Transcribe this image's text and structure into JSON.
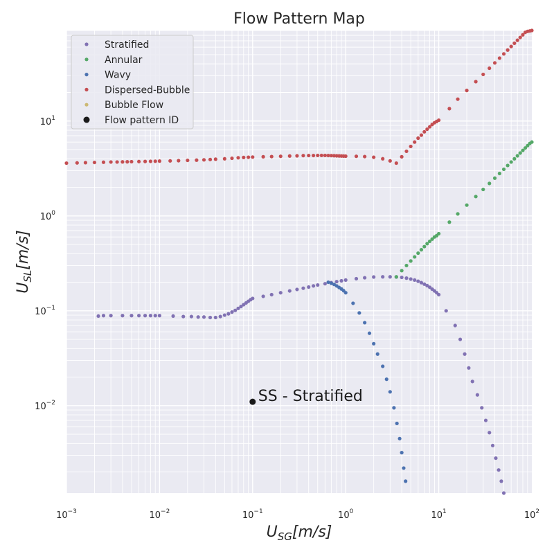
{
  "chart_data": {
    "type": "scatter",
    "title": "Flow Pattern Map",
    "xlabel_main": "U",
    "xlabel_sub": "SG",
    "xlabel_unit": "[m/s]",
    "ylabel_main": "U",
    "ylabel_sub": "SL",
    "ylabel_unit": "[m/s]",
    "x_scale": "log",
    "y_scale": "log",
    "xlim": [
      0.001,
      100
    ],
    "ylim": [
      0.0012,
      90
    ],
    "grid": true,
    "legend_position": "top-left",
    "x_ticks": [
      {
        "value": 0.001,
        "base": "10",
        "exp": "−3"
      },
      {
        "value": 0.01,
        "base": "10",
        "exp": "−2"
      },
      {
        "value": 0.1,
        "base": "10",
        "exp": "−1"
      },
      {
        "value": 1,
        "base": "10",
        "exp": "0"
      },
      {
        "value": 10,
        "base": "10",
        "exp": "1"
      },
      {
        "value": 100,
        "base": "10",
        "exp": "2"
      }
    ],
    "y_ticks": [
      {
        "value": 0.01,
        "base": "10",
        "exp": "−2"
      },
      {
        "value": 0.1,
        "base": "10",
        "exp": "−1"
      },
      {
        "value": 1,
        "base": "10",
        "exp": "0"
      },
      {
        "value": 10,
        "base": "10",
        "exp": "1"
      }
    ],
    "series": [
      {
        "name": "Stratified",
        "color": "#8172b3",
        "points": [
          [
            0.0022,
            0.088
          ],
          [
            0.0025,
            0.089
          ],
          [
            0.003,
            0.089
          ],
          [
            0.004,
            0.089
          ],
          [
            0.005,
            0.089
          ],
          [
            0.006,
            0.089
          ],
          [
            0.007,
            0.089
          ],
          [
            0.008,
            0.089
          ],
          [
            0.009,
            0.089
          ],
          [
            0.01,
            0.089
          ],
          [
            0.014,
            0.088
          ],
          [
            0.018,
            0.087
          ],
          [
            0.022,
            0.087
          ],
          [
            0.026,
            0.086
          ],
          [
            0.03,
            0.086
          ],
          [
            0.035,
            0.085
          ],
          [
            0.04,
            0.085
          ],
          [
            0.045,
            0.087
          ],
          [
            0.05,
            0.09
          ],
          [
            0.055,
            0.093
          ],
          [
            0.06,
            0.097
          ],
          [
            0.065,
            0.101
          ],
          [
            0.07,
            0.106
          ],
          [
            0.075,
            0.111
          ],
          [
            0.08,
            0.116
          ],
          [
            0.085,
            0.121
          ],
          [
            0.09,
            0.126
          ],
          [
            0.095,
            0.131
          ],
          [
            0.1,
            0.135
          ],
          [
            0.13,
            0.142
          ],
          [
            0.16,
            0.148
          ],
          [
            0.2,
            0.155
          ],
          [
            0.25,
            0.162
          ],
          [
            0.3,
            0.168
          ],
          [
            0.35,
            0.173
          ],
          [
            0.4,
            0.178
          ],
          [
            0.45,
            0.183
          ],
          [
            0.5,
            0.187
          ],
          [
            0.6,
            0.193
          ],
          [
            0.7,
            0.198
          ],
          [
            0.8,
            0.203
          ],
          [
            0.9,
            0.207
          ],
          [
            1.0,
            0.211
          ],
          [
            1.3,
            0.218
          ],
          [
            1.6,
            0.223
          ],
          [
            2.0,
            0.227
          ],
          [
            2.5,
            0.228
          ],
          [
            3.0,
            0.228
          ],
          [
            3.5,
            0.227
          ],
          [
            4.0,
            0.225
          ],
          [
            4.5,
            0.221
          ],
          [
            5.0,
            0.216
          ],
          [
            5.5,
            0.211
          ],
          [
            6.0,
            0.205
          ],
          [
            6.5,
            0.198
          ],
          [
            7.0,
            0.191
          ],
          [
            7.5,
            0.184
          ],
          [
            8.0,
            0.177
          ],
          [
            8.5,
            0.169
          ],
          [
            9.0,
            0.162
          ],
          [
            9.5,
            0.155
          ],
          [
            10.0,
            0.148
          ],
          [
            12,
            0.1
          ],
          [
            15,
            0.07
          ],
          [
            17,
            0.05
          ],
          [
            19,
            0.035
          ],
          [
            21,
            0.025
          ],
          [
            23,
            0.018
          ],
          [
            26,
            0.013
          ],
          [
            29,
            0.0095
          ],
          [
            32,
            0.007
          ],
          [
            35,
            0.0052
          ],
          [
            38,
            0.0038
          ],
          [
            41,
            0.0028
          ],
          [
            44,
            0.0021
          ],
          [
            47,
            0.0016
          ],
          [
            50,
            0.0012
          ]
        ]
      },
      {
        "name": "Annular",
        "color": "#55a868",
        "points": [
          [
            3.5,
            0.228
          ],
          [
            4,
            0.265
          ],
          [
            4.5,
            0.3
          ],
          [
            5,
            0.335
          ],
          [
            5.5,
            0.37
          ],
          [
            6,
            0.405
          ],
          [
            6.5,
            0.44
          ],
          [
            7,
            0.475
          ],
          [
            7.5,
            0.51
          ],
          [
            8,
            0.54
          ],
          [
            8.5,
            0.57
          ],
          [
            9,
            0.6
          ],
          [
            9.5,
            0.62
          ],
          [
            10,
            0.65
          ],
          [
            13,
            0.86
          ],
          [
            16,
            1.05
          ],
          [
            20,
            1.3
          ],
          [
            25,
            1.6
          ],
          [
            30,
            1.9
          ],
          [
            35,
            2.2
          ],
          [
            40,
            2.5
          ],
          [
            45,
            2.8
          ],
          [
            50,
            3.1
          ],
          [
            55,
            3.4
          ],
          [
            60,
            3.7
          ],
          [
            65,
            4.0
          ],
          [
            70,
            4.3
          ],
          [
            75,
            4.6
          ],
          [
            80,
            4.9
          ],
          [
            85,
            5.2
          ],
          [
            90,
            5.5
          ],
          [
            95,
            5.8
          ],
          [
            100,
            6.0
          ]
        ]
      },
      {
        "name": "Wavy",
        "color": "#4c72b0",
        "points": [
          [
            0.65,
            0.2
          ],
          [
            0.7,
            0.195
          ],
          [
            0.75,
            0.19
          ],
          [
            0.8,
            0.183
          ],
          [
            0.85,
            0.176
          ],
          [
            0.9,
            0.17
          ],
          [
            0.95,
            0.163
          ],
          [
            1.0,
            0.155
          ],
          [
            1.2,
            0.12
          ],
          [
            1.4,
            0.095
          ],
          [
            1.6,
            0.075
          ],
          [
            1.8,
            0.058
          ],
          [
            2.0,
            0.045
          ],
          [
            2.2,
            0.035
          ],
          [
            2.5,
            0.026
          ],
          [
            2.75,
            0.019
          ],
          [
            3.0,
            0.014
          ],
          [
            3.3,
            0.0095
          ],
          [
            3.55,
            0.0065
          ],
          [
            3.8,
            0.0045
          ],
          [
            4.0,
            0.0032
          ],
          [
            4.2,
            0.0022
          ],
          [
            4.4,
            0.0016
          ]
        ]
      },
      {
        "name": "Dispersed-Bubble",
        "color": "#c44e52",
        "points": [
          [
            0.001,
            3.6
          ],
          [
            0.0013,
            3.62
          ],
          [
            0.0016,
            3.64
          ],
          [
            0.002,
            3.66
          ],
          [
            0.0025,
            3.68
          ],
          [
            0.003,
            3.7
          ],
          [
            0.0035,
            3.7
          ],
          [
            0.004,
            3.71
          ],
          [
            0.0045,
            3.72
          ],
          [
            0.005,
            3.73
          ],
          [
            0.006,
            3.74
          ],
          [
            0.007,
            3.75
          ],
          [
            0.008,
            3.76
          ],
          [
            0.009,
            3.77
          ],
          [
            0.01,
            3.78
          ],
          [
            0.013,
            3.8
          ],
          [
            0.016,
            3.82
          ],
          [
            0.02,
            3.85
          ],
          [
            0.025,
            3.87
          ],
          [
            0.03,
            3.9
          ],
          [
            0.035,
            3.93
          ],
          [
            0.04,
            3.96
          ],
          [
            0.05,
            4.0
          ],
          [
            0.06,
            4.05
          ],
          [
            0.07,
            4.1
          ],
          [
            0.08,
            4.13
          ],
          [
            0.09,
            4.15
          ],
          [
            0.1,
            4.17
          ],
          [
            0.13,
            4.2
          ],
          [
            0.16,
            4.22
          ],
          [
            0.2,
            4.25
          ],
          [
            0.25,
            4.28
          ],
          [
            0.3,
            4.3
          ],
          [
            0.35,
            4.32
          ],
          [
            0.4,
            4.33
          ],
          [
            0.45,
            4.33
          ],
          [
            0.5,
            4.34
          ],
          [
            0.55,
            4.34
          ],
          [
            0.6,
            4.34
          ],
          [
            0.65,
            4.33
          ],
          [
            0.7,
            4.32
          ],
          [
            0.75,
            4.31
          ],
          [
            0.8,
            4.3
          ],
          [
            0.85,
            4.29
          ],
          [
            0.9,
            4.28
          ],
          [
            0.95,
            4.27
          ],
          [
            1.0,
            4.26
          ],
          [
            1.3,
            4.25
          ],
          [
            1.6,
            4.22
          ],
          [
            2.0,
            4.15
          ],
          [
            2.5,
            4.0
          ],
          [
            3.0,
            3.8
          ],
          [
            3.5,
            3.6
          ],
          [
            4.0,
            4.2
          ],
          [
            4.5,
            4.8
          ],
          [
            5.0,
            5.4
          ],
          [
            5.5,
            6.0
          ],
          [
            6.0,
            6.6
          ],
          [
            6.5,
            7.1
          ],
          [
            7.0,
            7.7
          ],
          [
            7.5,
            8.2
          ],
          [
            8.0,
            8.7
          ],
          [
            8.5,
            9.2
          ],
          [
            9.0,
            9.6
          ],
          [
            9.5,
            9.9
          ],
          [
            10.0,
            10.2
          ],
          [
            13,
            13.5
          ],
          [
            16,
            17
          ],
          [
            20,
            21
          ],
          [
            25,
            26
          ],
          [
            30,
            31
          ],
          [
            35,
            36
          ],
          [
            40,
            41
          ],
          [
            45,
            46
          ],
          [
            50,
            51
          ],
          [
            55,
            56
          ],
          [
            60,
            61
          ],
          [
            65,
            66
          ],
          [
            70,
            71
          ],
          [
            75,
            76
          ],
          [
            80,
            81
          ],
          [
            85,
            86
          ],
          [
            90,
            88
          ],
          [
            95,
            89
          ],
          [
            100,
            90
          ]
        ]
      },
      {
        "name": "Bubble Flow",
        "color": "#ccb974",
        "points": []
      }
    ],
    "id_point": {
      "name": "Flow pattern ID",
      "color": "#1a1a1a",
      "x": 0.1,
      "y": 0.011,
      "label": "SS - Stratified"
    }
  }
}
